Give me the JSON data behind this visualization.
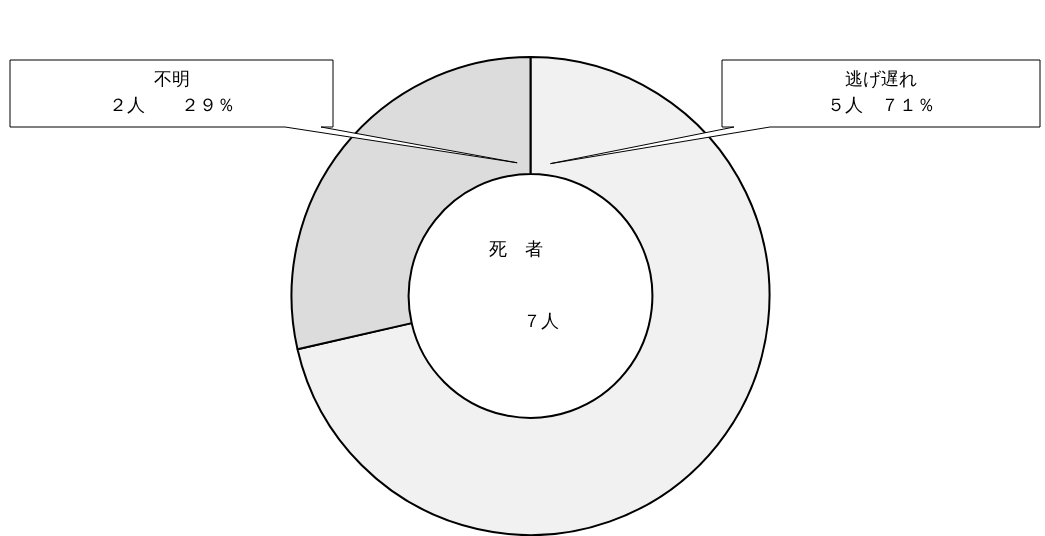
{
  "chart_data": {
    "type": "donut",
    "categories": [
      "逃げ遅れ",
      "不明"
    ],
    "values": [
      5,
      2
    ],
    "colors": [
      "#f1f1f1",
      "#dcdcdc"
    ],
    "value_labels": [
      "５人　７１％",
      "２人　　２９％"
    ],
    "annotations": [
      "死　者",
      "７人"
    ]
  }
}
